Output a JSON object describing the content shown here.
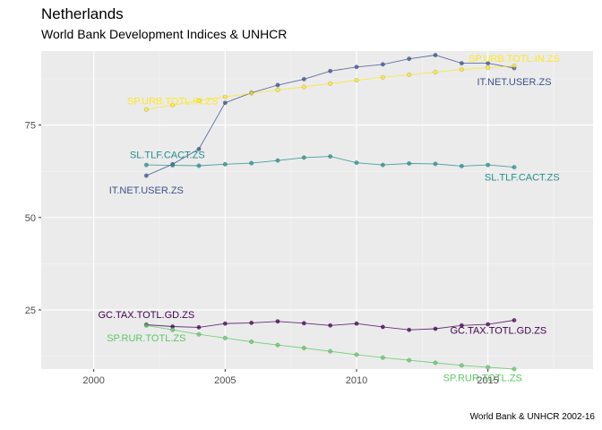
{
  "title": "Netherlands",
  "subtitle": "World Bank Development Indices & UNHCR",
  "caption": "World Bank & UNHCR 2002-16",
  "chart_data": {
    "type": "line",
    "xlim": [
      1998,
      2019
    ],
    "ylim": [
      9,
      95
    ],
    "x_ticks": [
      2000,
      2005,
      2010,
      2015
    ],
    "y_ticks": [
      25,
      50,
      75
    ],
    "grid": true,
    "series": [
      {
        "name": "IT.NET.USER.ZS",
        "color": "#3B528B",
        "x": [
          2002,
          2003,
          2004,
          2005,
          2006,
          2007,
          2008,
          2009,
          2010,
          2011,
          2012,
          2013,
          2014,
          2015,
          2016
        ],
        "values": [
          61.3,
          64.4,
          68.5,
          81.0,
          83.7,
          85.8,
          87.4,
          89.6,
          90.7,
          91.4,
          92.9,
          93.9,
          91.7,
          91.7,
          90.4
        ]
      },
      {
        "name": "SP.URB.TOTL.IN.ZS",
        "color": "#FDE725",
        "x": [
          2002,
          2003,
          2004,
          2005,
          2006,
          2007,
          2008,
          2009,
          2010,
          2011,
          2012,
          2013,
          2014,
          2015,
          2016
        ],
        "values": [
          79.2,
          80.4,
          81.6,
          82.6,
          83.6,
          84.5,
          85.3,
          86.2,
          87.1,
          87.9,
          88.6,
          89.3,
          90.0,
          90.5,
          91.0
        ]
      },
      {
        "name": "SL.TLF.CACT.ZS",
        "color": "#21908C",
        "x": [
          2002,
          2003,
          2004,
          2005,
          2006,
          2007,
          2008,
          2009,
          2010,
          2011,
          2012,
          2013,
          2014,
          2015,
          2016
        ],
        "values": [
          64.2,
          64.1,
          64.0,
          64.4,
          64.7,
          65.4,
          66.2,
          66.5,
          64.8,
          64.2,
          64.6,
          64.5,
          63.9,
          64.2,
          63.6
        ]
      },
      {
        "name": "GC.TAX.TOTL.GD.ZS",
        "color": "#440154",
        "x": [
          2002,
          2003,
          2004,
          2005,
          2006,
          2007,
          2008,
          2009,
          2010,
          2011,
          2012,
          2013,
          2014,
          2015,
          2016
        ],
        "values": [
          21.0,
          20.5,
          20.3,
          21.3,
          21.5,
          21.9,
          21.4,
          20.8,
          21.3,
          20.4,
          19.6,
          19.9,
          20.8,
          21.1,
          22.2
        ]
      },
      {
        "name": "SP.RUR.TOTL.ZS",
        "color": "#5DC863",
        "x": [
          2002,
          2003,
          2004,
          2005,
          2006,
          2007,
          2008,
          2009,
          2010,
          2011,
          2012,
          2013,
          2014,
          2015,
          2016
        ],
        "values": [
          20.8,
          19.6,
          18.4,
          17.4,
          16.4,
          15.5,
          14.7,
          13.8,
          12.9,
          12.1,
          11.4,
          10.7,
          10.0,
          9.5,
          9.0
        ]
      }
    ],
    "labels": [
      {
        "series": 0,
        "text": "IT.NET.USER.ZS",
        "x": 2002,
        "y": 57.5
      },
      {
        "series": 0,
        "text": "IT.NET.USER.ZS",
        "x": 2016,
        "y": 86.8
      },
      {
        "series": 1,
        "text": "SP.URB.TOTL.IN.ZS",
        "x": 2003,
        "y": 81.5
      },
      {
        "series": 1,
        "text": "SP.URB.TOTL.IN.ZS",
        "x": 2016,
        "y": 93.1
      },
      {
        "series": 2,
        "text": "SL.TLF.CACT.ZS",
        "x": 2002.8,
        "y": 67.0
      },
      {
        "series": 2,
        "text": "SL.TLF.CACT.ZS",
        "x": 2016.3,
        "y": 61.0
      },
      {
        "series": 3,
        "text": "GC.TAX.TOTL.GD.ZS",
        "x": 2002,
        "y": 23.8
      },
      {
        "series": 3,
        "text": "GC.TAX.TOTL.GD.ZS",
        "x": 2015.4,
        "y": 19.5
      },
      {
        "series": 4,
        "text": "SP.RUR.TOTL.ZS",
        "x": 2002,
        "y": 17.5
      },
      {
        "series": 4,
        "text": "SP.RUR.TOTL.ZS",
        "x": 2014.8,
        "y": 6.7
      }
    ]
  }
}
